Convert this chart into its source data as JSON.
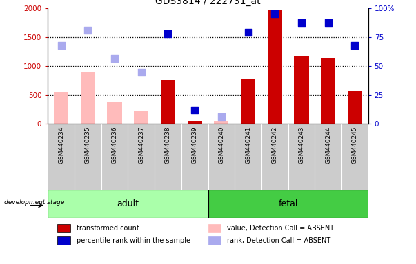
{
  "title": "GDS3814 / 222731_at",
  "samples": [
    "GSM440234",
    "GSM440235",
    "GSM440236",
    "GSM440237",
    "GSM440238",
    "GSM440239",
    "GSM440240",
    "GSM440241",
    "GSM440242",
    "GSM440243",
    "GSM440244",
    "GSM440245"
  ],
  "absent": [
    true,
    true,
    true,
    true,
    false,
    false,
    true,
    false,
    false,
    false,
    false,
    false
  ],
  "bar_values": [
    550,
    900,
    390,
    230,
    750,
    50,
    50,
    770,
    1960,
    1180,
    1140,
    560
  ],
  "dot_values_left_scale": [
    1350,
    1620,
    1130,
    890,
    null,
    null,
    120,
    null,
    null,
    null,
    null,
    null
  ],
  "dot_values_right_scale": [
    null,
    null,
    null,
    null,
    78,
    12,
    null,
    79,
    95,
    87,
    87,
    68
  ],
  "adult_count": 6,
  "fetal_count": 6,
  "group_colors": [
    "#aaffaa",
    "#44cc44"
  ],
  "ylim_left": [
    0,
    2000
  ],
  "ylim_right": [
    0,
    100
  ],
  "yticks_left": [
    0,
    500,
    1000,
    1500,
    2000
  ],
  "ytick_labels_left": [
    "0",
    "500",
    "1000",
    "1500",
    "2000"
  ],
  "yticks_right": [
    0,
    25,
    50,
    75,
    100
  ],
  "ytick_labels_right": [
    "0",
    "25",
    "50",
    "75",
    "100%"
  ],
  "bar_color_present": "#cc0000",
  "bar_color_absent": "#ffbbbb",
  "dot_color_present": "#0000cc",
  "dot_color_absent": "#aaaaee",
  "axis_left_color": "#cc0000",
  "axis_right_color": "#0000cc",
  "legend_labels": [
    "transformed count",
    "percentile rank within the sample",
    "value, Detection Call = ABSENT",
    "rank, Detection Call = ABSENT"
  ],
  "legend_colors": [
    "#cc0000",
    "#0000cc",
    "#ffbbbb",
    "#aaaaee"
  ],
  "dev_stage_label": "development stage",
  "dot_size": 60,
  "bar_width": 0.55
}
